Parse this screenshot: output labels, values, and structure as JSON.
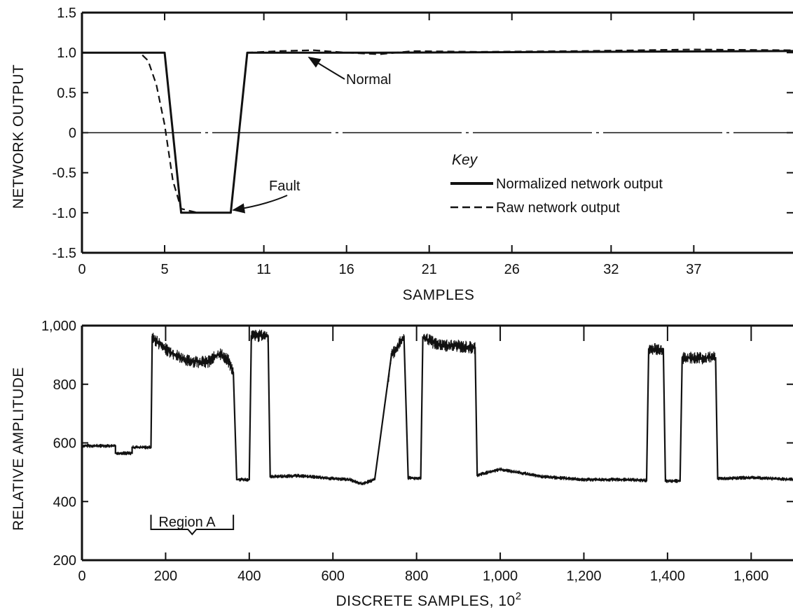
{
  "chart_data": [
    {
      "type": "line",
      "xlabel": "SAMPLES",
      "ylabel": "NETWORK OUTPUT",
      "ylim": [
        -1.5,
        1.5
      ],
      "yticks": [
        "1.5",
        "1.0",
        "0.5",
        "0",
        "-0.5",
        "-1.0",
        "-1.5"
      ],
      "yticks_values": [
        1.5,
        1.0,
        0.5,
        0,
        -0.5,
        -1.0,
        -1.5
      ],
      "xticks": [
        "0",
        "5",
        "11",
        "16",
        "21",
        "26",
        "32",
        "37"
      ],
      "xticks_values": [
        0,
        5,
        11,
        16,
        21,
        26,
        32,
        37
      ],
      "xlim": [
        0,
        43
      ],
      "grid": false,
      "legend": {
        "title": "Key",
        "position": "right",
        "entries": [
          "Normalized network output",
          "Raw network output"
        ]
      },
      "series": [
        {
          "name": "Normalized network output",
          "style": "solid",
          "x": [
            0,
            1,
            5,
            6,
            9,
            10,
            18,
            43
          ],
          "y": [
            1.0,
            1.0,
            1.0,
            -1.0,
            -1.0,
            1.0,
            1.0,
            1.02
          ]
        },
        {
          "name": "Raw network output",
          "style": "dashed",
          "x": [
            1,
            3.5,
            4,
            4.5,
            5,
            5.5,
            6,
            7,
            8,
            9,
            10,
            12,
            14,
            16,
            18,
            20,
            24,
            30,
            37,
            43
          ],
          "y": [
            1.0,
            1.0,
            0.9,
            0.6,
            0.1,
            -0.6,
            -0.95,
            -1.0,
            -1.0,
            -1.0,
            1.0,
            1.02,
            1.03,
            1.0,
            0.98,
            1.02,
            1.01,
            1.02,
            1.04,
            1.03
          ]
        }
      ],
      "reference_line": {
        "y": 0,
        "style": "dash-dot"
      },
      "annotations": [
        {
          "text": "Normal",
          "target": [
            13,
            1.0
          ]
        },
        {
          "text": "Fault",
          "target": [
            9,
            -1.0
          ]
        }
      ]
    },
    {
      "type": "line",
      "xlabel": "DISCRETE SAMPLES, 10",
      "xlabel_superscript": "2",
      "ylabel": "RELATIVE AMPLITUDE",
      "ylim": [
        200,
        1000
      ],
      "yticks": [
        "1,000",
        "800",
        "600",
        "400",
        "200"
      ],
      "yticks_values": [
        1000,
        800,
        600,
        400,
        200
      ],
      "xlim": [
        0,
        1700
      ],
      "xticks": [
        "0",
        "200",
        "400",
        "600",
        "800",
        "1,000",
        "1,200",
        "1,400",
        "1,600"
      ],
      "xticks_values": [
        0,
        200,
        400,
        600,
        800,
        1000,
        1200,
        1400,
        1600
      ],
      "grid": false,
      "series": [
        {
          "style": "noisy",
          "x": [
            0,
            80,
            80,
            120,
            120,
            165,
            168,
            200,
            250,
            300,
            330,
            350,
            362,
            370,
            400,
            405,
            445,
            450,
            520,
            600,
            640,
            670,
            700,
            740,
            770,
            780,
            810,
            815,
            850,
            940,
            945,
            1000,
            1100,
            1200,
            1300,
            1350,
            1355,
            1390,
            1395,
            1430,
            1435,
            1515,
            1520,
            1600,
            1700
          ],
          "y": [
            590,
            590,
            565,
            565,
            585,
            585,
            960,
            920,
            880,
            875,
            905,
            880,
            840,
            475,
            475,
            965,
            965,
            485,
            488,
            478,
            475,
            460,
            475,
            900,
            960,
            480,
            480,
            960,
            935,
            925,
            490,
            510,
            485,
            475,
            475,
            472,
            920,
            920,
            470,
            470,
            890,
            890,
            478,
            482,
            475
          ]
        }
      ],
      "annotations": [
        {
          "text": "Region A",
          "x_range": [
            165,
            362
          ]
        }
      ]
    }
  ]
}
